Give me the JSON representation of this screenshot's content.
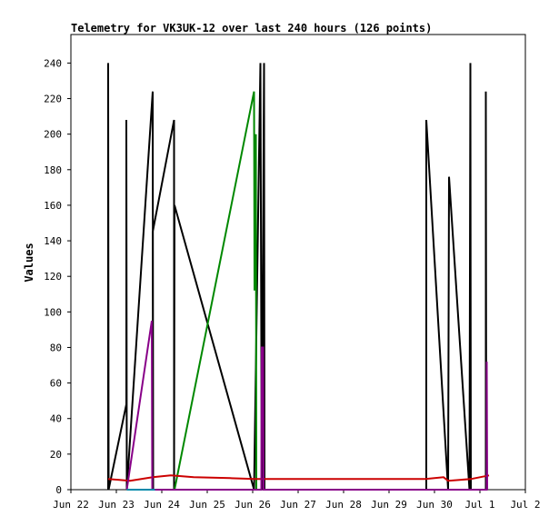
{
  "chart_data": {
    "type": "line",
    "title": "Telemetry for VK3UK-12 over last 240 hours (126 points)",
    "ylabel": "Values",
    "xlabel": "",
    "ylim": [
      0,
      255
    ],
    "x_range_days": [
      22,
      32
    ],
    "x_ticks": [
      {
        "label": "Jun 22",
        "day": 22
      },
      {
        "label": "Jun 23",
        "day": 23
      },
      {
        "label": "Jun 24",
        "day": 24
      },
      {
        "label": "Jun 25",
        "day": 25
      },
      {
        "label": "Jun 26",
        "day": 26
      },
      {
        "label": "Jun 27",
        "day": 27
      },
      {
        "label": "Jun 28",
        "day": 28
      },
      {
        "label": "Jun 29",
        "day": 29
      },
      {
        "label": "Jun 30",
        "day": 30
      },
      {
        "label": "Jul 1",
        "day": 31
      },
      {
        "label": "Jul 2",
        "day": 32
      }
    ],
    "y_ticks": [
      0,
      20,
      40,
      60,
      80,
      100,
      120,
      140,
      160,
      180,
      200,
      220,
      240
    ],
    "grid": false,
    "series": [
      {
        "color": "#000000",
        "points": [
          [
            22.82,
            0
          ],
          [
            22.82,
            240
          ],
          [
            22.83,
            0
          ],
          [
            23.22,
            48
          ],
          [
            23.22,
            208
          ],
          [
            23.23,
            0
          ],
          [
            23.8,
            224
          ],
          [
            23.81,
            0
          ],
          [
            23.8,
            145
          ],
          [
            24.27,
            208
          ],
          [
            24.27,
            0
          ],
          [
            24.28,
            160
          ],
          [
            26.03,
            0
          ],
          [
            26.17,
            240
          ],
          [
            26.2,
            0
          ],
          [
            26.25,
            240
          ],
          [
            26.26,
            0
          ],
          [
            29.82,
            0
          ],
          [
            29.82,
            208
          ],
          [
            30.3,
            0
          ],
          [
            30.32,
            176
          ],
          [
            30.77,
            0
          ],
          [
            30.79,
            240
          ],
          [
            30.8,
            0
          ],
          [
            31.13,
            0
          ],
          [
            31.13,
            224
          ],
          [
            31.14,
            0
          ]
        ]
      },
      {
        "color": "#008800",
        "points": [
          [
            24.28,
            0
          ],
          [
            26.03,
            224
          ],
          [
            26.04,
            112
          ],
          [
            26.07,
            200
          ],
          [
            26.08,
            0
          ]
        ]
      },
      {
        "color": "#cc0000",
        "points": [
          [
            22.82,
            6
          ],
          [
            23.3,
            5
          ],
          [
            23.8,
            7
          ],
          [
            24.2,
            8
          ],
          [
            24.7,
            7
          ],
          [
            25.5,
            6.5
          ],
          [
            26.05,
            6
          ],
          [
            27,
            6
          ],
          [
            28,
            6
          ],
          [
            29,
            6
          ],
          [
            29.8,
            6
          ],
          [
            30.2,
            7
          ],
          [
            30.3,
            5
          ],
          [
            30.8,
            6
          ],
          [
            31.2,
            8
          ]
        ]
      },
      {
        "color": "#880088",
        "points": [
          [
            23.23,
            0
          ],
          [
            23.78,
            95
          ],
          [
            23.79,
            0
          ],
          [
            26.19,
            0
          ],
          [
            26.2,
            80
          ],
          [
            26.23,
            80
          ],
          [
            26.24,
            0
          ],
          [
            31.15,
            0
          ],
          [
            31.15,
            72
          ],
          [
            31.16,
            0
          ]
        ]
      },
      {
        "color": "#0088aa",
        "points": [
          [
            23.23,
            0
          ],
          [
            23.85,
            0
          ]
        ]
      }
    ]
  }
}
